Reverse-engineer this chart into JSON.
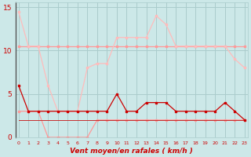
{
  "x": [
    0,
    1,
    2,
    3,
    4,
    5,
    6,
    7,
    8,
    9,
    10,
    11,
    12,
    13,
    14,
    15,
    16,
    17,
    18,
    19,
    20,
    21,
    22,
    23
  ],
  "series": {
    "light_pink_upper": [
      10.5,
      10.5,
      10.5,
      10.5,
      10.5,
      10.5,
      10.5,
      10.5,
      10.5,
      10.5,
      10.5,
      10.5,
      10.5,
      10.5,
      10.5,
      10.5,
      10.5,
      10.5,
      10.5,
      10.5,
      10.5,
      10.5,
      10.5,
      10.5
    ],
    "light_pink_mid": [
      14.5,
      10.5,
      10.5,
      6.0,
      3.0,
      3.0,
      3.0,
      8.0,
      8.5,
      8.5,
      11.5,
      11.5,
      11.5,
      11.5,
      14.0,
      13.0,
      10.5,
      10.5,
      10.5,
      10.5,
      10.5,
      10.5,
      9.0,
      8.0
    ],
    "light_pink_lower": [
      3.0,
      3.0,
      3.0,
      0.0,
      0.0,
      0.0,
      0.0,
      0.0,
      2.0,
      2.0,
      2.0,
      2.0,
      2.0,
      2.0,
      2.0,
      2.0,
      2.0,
      2.0,
      2.0,
      2.0,
      2.0,
      2.0,
      2.0,
      2.0
    ],
    "dark_red_main": [
      6.0,
      3.0,
      3.0,
      3.0,
      3.0,
      3.0,
      3.0,
      3.0,
      3.0,
      3.0,
      5.0,
      3.0,
      3.0,
      4.0,
      4.0,
      4.0,
      3.0,
      3.0,
      3.0,
      3.0,
      3.0,
      4.0,
      3.0,
      2.0
    ],
    "dark_line1": [
      2.0,
      2.0,
      2.0,
      2.0,
      2.0,
      2.0,
      2.0,
      2.0,
      2.0,
      2.0,
      2.0,
      2.0,
      2.0,
      2.0,
      2.0,
      2.0,
      2.0,
      2.0,
      2.0,
      2.0,
      2.0,
      2.0,
      2.0,
      2.0
    ],
    "dark_line2": [
      2.0,
      2.0,
      2.0,
      2.0,
      2.0,
      2.0,
      2.0,
      2.0,
      2.0,
      2.0,
      2.0,
      2.0,
      2.0,
      2.0,
      2.0,
      2.0,
      2.0,
      2.0,
      2.0,
      2.0,
      2.0,
      2.0,
      2.0,
      2.0
    ]
  },
  "ylim": [
    0,
    15.5
  ],
  "yticks": [
    0,
    5,
    10,
    15
  ],
  "xlim": [
    -0.3,
    23.3
  ],
  "xlabel": "Vent moyen/en rafales ( km/h )",
  "bg_color": "#cce8e8",
  "grid_color": "#aacccc",
  "color_dark_red": "#cc0000",
  "color_black": "#222222",
  "color_light_pink": "#ff9999",
  "color_lighter_pink": "#ffbbbb",
  "color_medium_red": "#cc3333"
}
